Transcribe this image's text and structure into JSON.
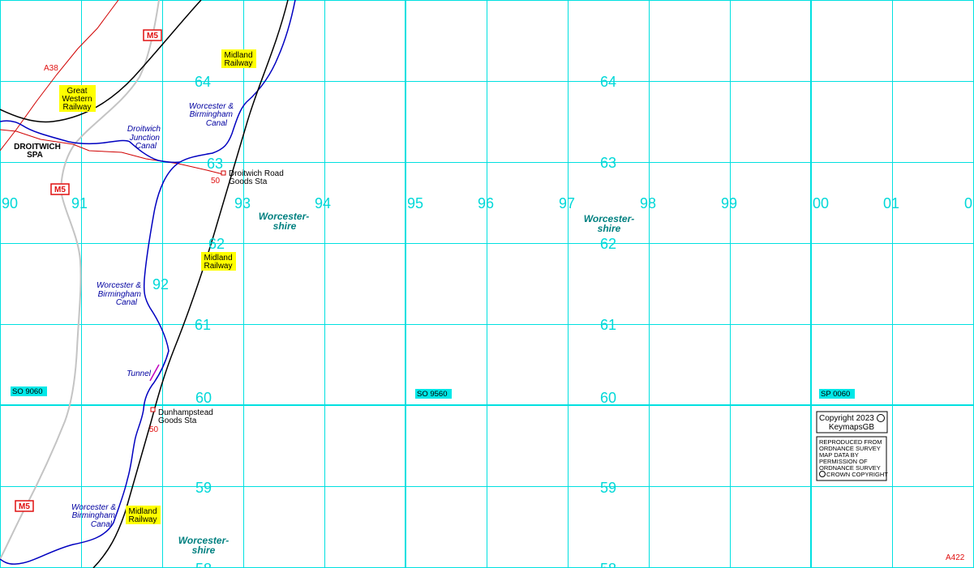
{
  "colors": {
    "grid": "#00d8d8",
    "canal": "#0000c0",
    "railway": "#000000",
    "road_a": "#d00000",
    "motorway": "#c0c0c0",
    "railway_label_bg": "#ffff00",
    "grid_ref_bg": "#00e8e8",
    "tunnel": "#c000c0"
  },
  "grid_eastings": [
    "90",
    "91",
    "92",
    "93",
    "94",
    "95",
    "96",
    "97",
    "98",
    "99",
    "00",
    "01",
    "0"
  ],
  "grid_northings_left": [
    "64",
    "63",
    "62",
    "61",
    "60",
    "59",
    "58"
  ],
  "grid_northings_right": [
    "64",
    "63",
    "62",
    "61",
    "60",
    "59",
    "58"
  ],
  "grid_refs": [
    "SO 9060",
    "SO 9560",
    "SP 0060"
  ],
  "roads": {
    "a38": "A38",
    "a422": "A422",
    "m5_shields": [
      "M5",
      "M5",
      "M5"
    ]
  },
  "railways": {
    "great_western": [
      "Great",
      "Western",
      "Railway"
    ],
    "midland_a": [
      "Midland",
      "Railway"
    ],
    "midland_b": [
      "Midland",
      "Railway"
    ],
    "midland_c": [
      "Midland",
      "Railway"
    ]
  },
  "canals": {
    "wb_north": [
      "Worcester &",
      "Birmingham",
      "Canal"
    ],
    "junction": [
      "Droitwich",
      "Junction",
      "Canal"
    ],
    "wb_mid": [
      "Worcester &",
      "Birmingham",
      "Canal"
    ],
    "wb_south": [
      "Worcester &",
      "Birmingham",
      "Canal"
    ],
    "tunnel": "Tunnel"
  },
  "places": {
    "town": [
      "DROITWICH",
      "SPA"
    ],
    "station_north": [
      "Droitwich Road",
      "Goods Sta"
    ],
    "station_south": [
      "Dunhampstead",
      "Goods Sta"
    ],
    "level_north": "50",
    "level_south": "50"
  },
  "county": {
    "a": [
      "Worcester-",
      "shire"
    ],
    "b": [
      "Worcester-",
      "shire"
    ],
    "c": [
      "Worcester-",
      "shire"
    ]
  },
  "copyright": {
    "line1": "Copyright 2023",
    "line2": "KeymapsGB",
    "reproduced": [
      "REPRODUCED FROM",
      "ORDNANCE SURVEY",
      "MAP DATA BY",
      "PERMISSION OF",
      "ORDNANCE SURVEY",
      "CROWN COPYRIGHT"
    ]
  }
}
